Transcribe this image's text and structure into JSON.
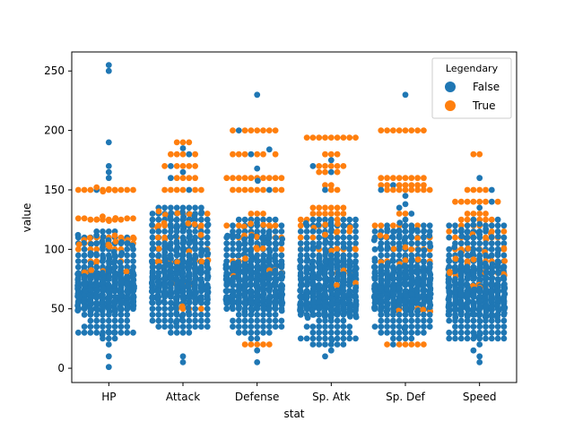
{
  "chart_data": {
    "type": "swarm",
    "title": "",
    "xlabel": "stat",
    "ylabel": "value",
    "ylim": [
      -12,
      266
    ],
    "y_ticks": [
      0,
      50,
      100,
      150,
      200,
      250
    ],
    "categories": [
      "HP",
      "Attack",
      "Defense",
      "Sp. Atk",
      "Sp. Def",
      "Speed"
    ],
    "grid": false,
    "legend": {
      "title": "Legendary",
      "placement": "top-right",
      "entries": [
        {
          "label": "False",
          "color": "#1f77b4"
        },
        {
          "label": "True",
          "color": "#ff7f0e"
        }
      ]
    },
    "series": [
      {
        "name": "False",
        "color": "#1f77b4",
        "distributions": {
          "HP": {
            "min": 1,
            "max": 255,
            "q1": 50,
            "median": 65,
            "q3": 80,
            "count": 735,
            "outliers": [
              1,
              10,
              20,
              150,
              160,
              165,
              170,
              190,
              250,
              255
            ]
          },
          "Attack": {
            "min": 5,
            "max": 190,
            "q1": 55,
            "median": 75,
            "q3": 100,
            "count": 735,
            "outliers": [
              5,
              10,
              150,
              160,
              165,
              170,
              180,
              185
            ]
          },
          "Defense": {
            "min": 5,
            "max": 230,
            "q1": 50,
            "median": 70,
            "q3": 90,
            "count": 735,
            "outliers": [
              5,
              15,
              150,
              160,
              168,
              180,
              184,
              200,
              230
            ]
          },
          "Sp. Atk": {
            "min": 10,
            "max": 175,
            "q1": 45,
            "median": 65,
            "q3": 90,
            "count": 735,
            "outliers": [
              10,
              15,
              150,
              165,
              170,
              175
            ]
          },
          "Sp. Def": {
            "min": 20,
            "max": 230,
            "q1": 50,
            "median": 65,
            "q3": 85,
            "count": 735,
            "outliers": [
              20,
              125,
              130,
              135,
              138,
              145,
              150,
              154,
              230
            ]
          },
          "Speed": {
            "min": 5,
            "max": 160,
            "q1": 45,
            "median": 65,
            "q3": 88,
            "count": 735,
            "outliers": [
              5,
              10,
              15,
              135,
              140,
              150,
              160
            ]
          }
        }
      },
      {
        "name": "True",
        "color": "#ff7f0e",
        "distributions": {
          "HP": {
            "min": 80,
            "max": 150,
            "q1": 90,
            "median": 100,
            "q3": 110,
            "count": 65,
            "values": [
              80,
              90,
              100,
              105,
              110,
              125,
              126,
              150
            ]
          },
          "Attack": {
            "min": 50,
            "max": 190,
            "q1": 100,
            "median": 110,
            "q3": 145,
            "count": 65,
            "values": [
              50,
              70,
              90,
              100,
              110,
              120,
              130,
              150,
              160,
              170,
              180,
              190
            ]
          },
          "Defense": {
            "min": 20,
            "max": 200,
            "q1": 90,
            "median": 100,
            "q3": 120,
            "count": 65,
            "values": [
              20,
              80,
              90,
              100,
              110,
              120,
              130,
              150,
              160,
              180,
              200
            ]
          },
          "Sp. Atk": {
            "min": 70,
            "max": 194,
            "q1": 100,
            "median": 125,
            "q3": 150,
            "count": 65,
            "values": [
              70,
              80,
              100,
              110,
              115,
              120,
              125,
              130,
              135,
              150,
              154,
              165,
              170,
              180,
              194
            ]
          },
          "Sp. Def": {
            "min": 20,
            "max": 200,
            "q1": 90,
            "median": 100,
            "q3": 120,
            "count": 65,
            "values": [
              20,
              50,
              90,
              100,
              110,
              120,
              130,
              150,
              154,
              160,
              200
            ]
          },
          "Speed": {
            "min": 70,
            "max": 180,
            "q1": 90,
            "median": 100,
            "q3": 115,
            "count": 65,
            "values": [
              70,
              80,
              90,
              100,
              110,
              115,
              120,
              125,
              130,
              140,
              150,
              180
            ]
          }
        }
      }
    ]
  }
}
